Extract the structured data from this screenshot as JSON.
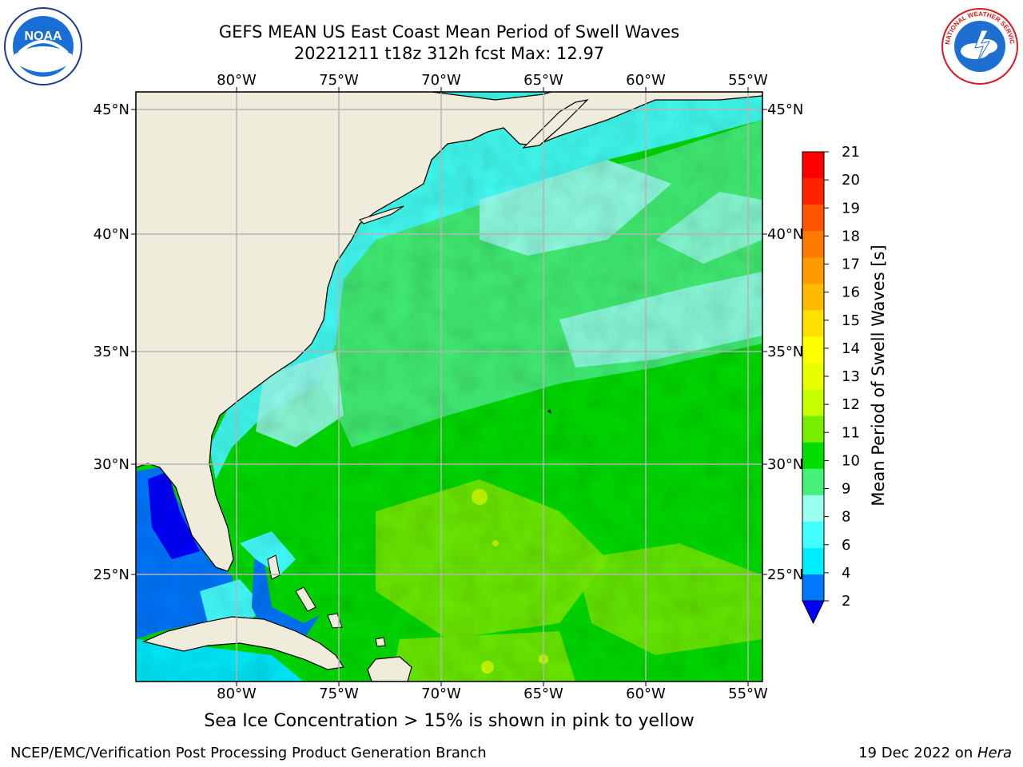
{
  "title": {
    "line1": "GEFS MEAN US East Coast Mean Period of Swell Waves",
    "line2": "20221211 t18z 312h fcst   Max: 12.97"
  },
  "logos": {
    "left": {
      "icon": "noaa-logo",
      "text": "NOAA"
    },
    "right": {
      "icon": "nws-logo",
      "text": "NATIONAL WEATHER SERVICE"
    }
  },
  "map": {
    "lon_labels": [
      "80°W",
      "75°W",
      "70°W",
      "65°W",
      "60°W",
      "55°W"
    ],
    "lat_labels": [
      "45°N",
      "40°N",
      "35°N",
      "30°N",
      "25°N"
    ],
    "colors": {
      "land": "#efecdc",
      "grid": "#b3b3b3",
      "coast": "#000000"
    }
  },
  "colorbar": {
    "label": "Mean Period of Swell Waves [s]",
    "ticks": [
      "21",
      "20",
      "19",
      "18",
      "17",
      "16",
      "15",
      "14",
      "13",
      "12",
      "11",
      "10",
      "9",
      "8",
      "6",
      "4",
      "2"
    ],
    "colors": [
      "#ff0000",
      "#ff2200",
      "#ff5500",
      "#ff7a00",
      "#ff9a00",
      "#ffbb00",
      "#ffe000",
      "#ffff00",
      "#e8ff00",
      "#c8ff00",
      "#77ee00",
      "#00dd00",
      "#44f07a",
      "#99ffee",
      "#44ffff",
      "#00eeff",
      "#0077ff",
      "#0000ff"
    ]
  },
  "caption": "Sea Ice Concentration > 15% is shown in pink to yellow",
  "footer": {
    "left": "NCEP/EMC/Verification Post Processing Product Generation Branch",
    "right_prefix": "19 Dec 2022 on ",
    "right_host": "Hera"
  }
}
